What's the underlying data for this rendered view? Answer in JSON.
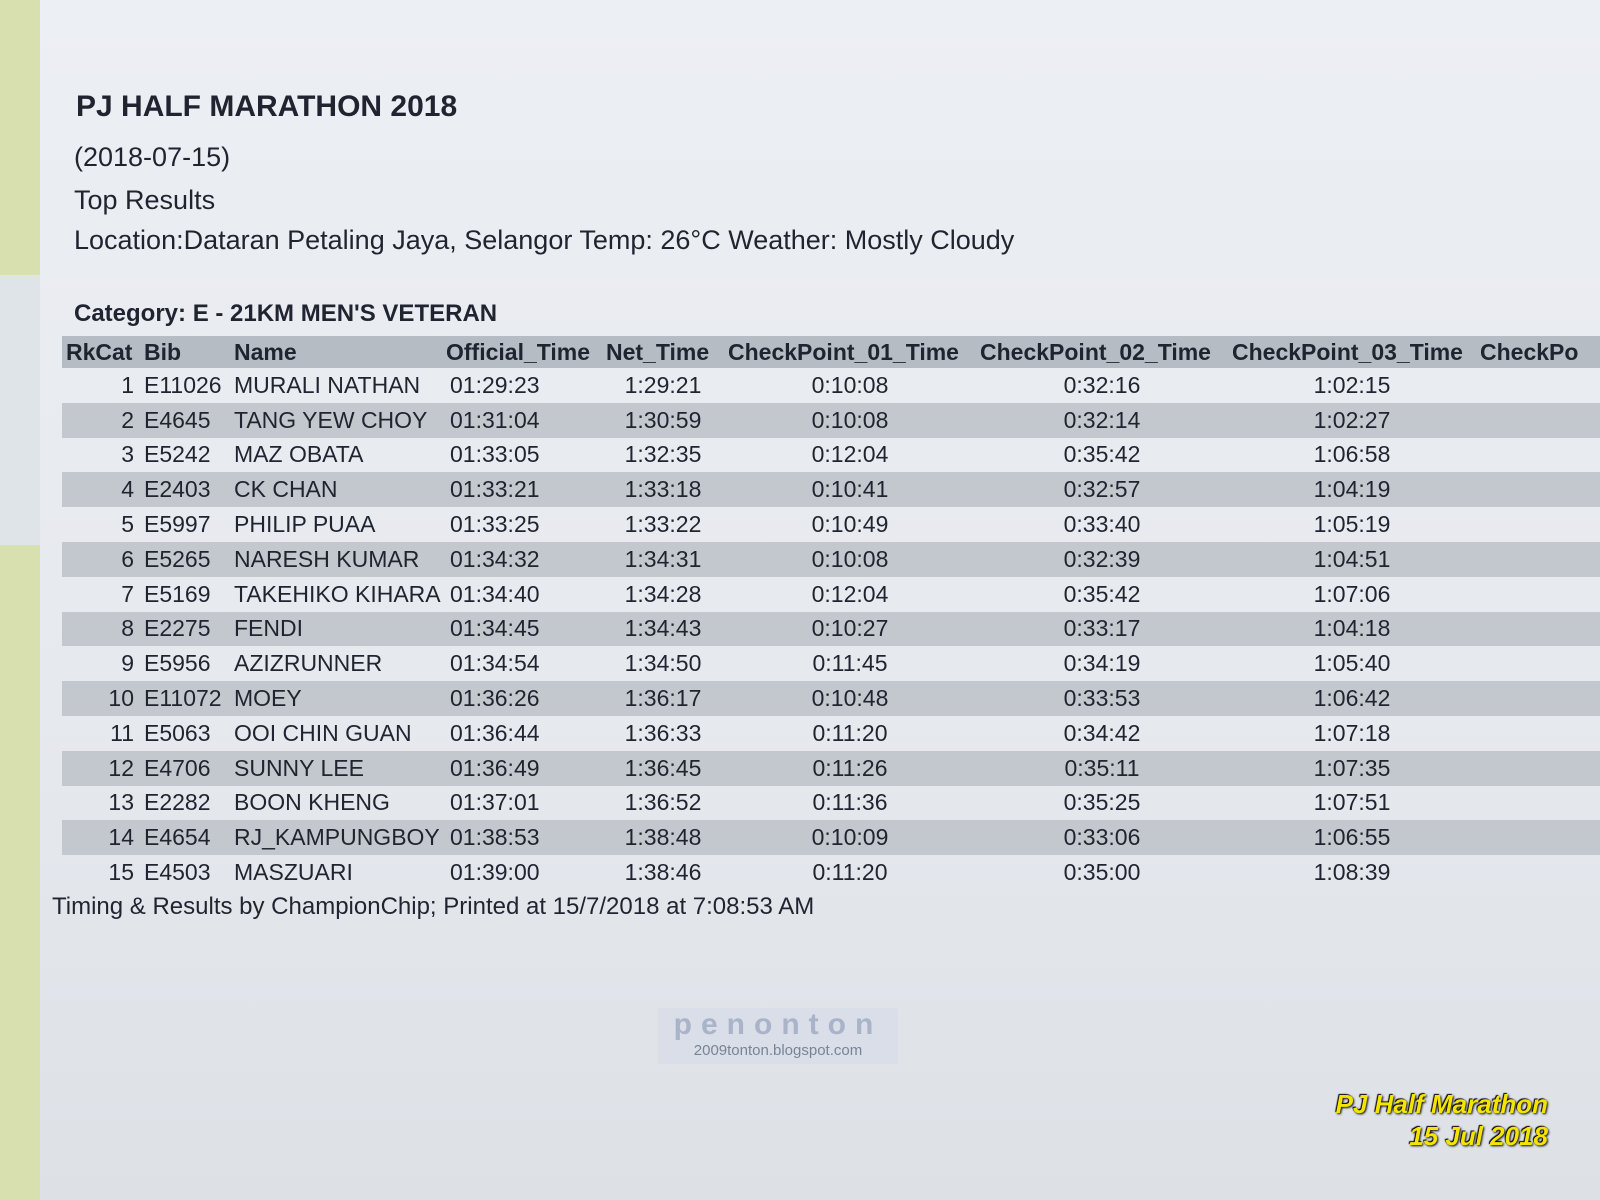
{
  "header": {
    "title": "PJ HALF MARATHON 2018",
    "date": "(2018-07-15)",
    "subtitle": "Top Results",
    "location": "Location:Dataran Petaling Jaya, Selangor Temp: 26°C  Weather: Mostly Cloudy"
  },
  "category": "Category: E - 21KM MEN'S VETERAN",
  "table": {
    "columns": [
      "RkCat",
      "Bib",
      "Name",
      "Official_Time",
      "Net_Time",
      "CheckPoint_01_Time",
      "CheckPoint_02_Time",
      "CheckPoint_03_Time",
      "CheckPo"
    ],
    "rows": [
      [
        "1",
        "E11026",
        "MURALI NATHAN",
        "01:29:23",
        "1:29:21",
        "0:10:08",
        "0:32:16",
        "1:02:15"
      ],
      [
        "2",
        "E4645",
        "TANG YEW CHOY",
        "01:31:04",
        "1:30:59",
        "0:10:08",
        "0:32:14",
        "1:02:27"
      ],
      [
        "3",
        "E5242",
        "MAZ OBATA",
        "01:33:05",
        "1:32:35",
        "0:12:04",
        "0:35:42",
        "1:06:58"
      ],
      [
        "4",
        "E2403",
        "CK CHAN",
        "01:33:21",
        "1:33:18",
        "0:10:41",
        "0:32:57",
        "1:04:19"
      ],
      [
        "5",
        "E5997",
        "PHILIP PUAA",
        "01:33:25",
        "1:33:22",
        "0:10:49",
        "0:33:40",
        "1:05:19"
      ],
      [
        "6",
        "E5265",
        "NARESH KUMAR",
        "01:34:32",
        "1:34:31",
        "0:10:08",
        "0:32:39",
        "1:04:51"
      ],
      [
        "7",
        "E5169",
        "TAKEHIKO KIHARA",
        "01:34:40",
        "1:34:28",
        "0:12:04",
        "0:35:42",
        "1:07:06"
      ],
      [
        "8",
        "E2275",
        "FENDI",
        "01:34:45",
        "1:34:43",
        "0:10:27",
        "0:33:17",
        "1:04:18"
      ],
      [
        "9",
        "E5956",
        "AZIZRUNNER",
        "01:34:54",
        "1:34:50",
        "0:11:45",
        "0:34:19",
        "1:05:40"
      ],
      [
        "10",
        "E11072",
        "MOEY",
        "01:36:26",
        "1:36:17",
        "0:10:48",
        "0:33:53",
        "1:06:42"
      ],
      [
        "11",
        "E5063",
        "OOI CHIN GUAN",
        "01:36:44",
        "1:36:33",
        "0:11:20",
        "0:34:42",
        "1:07:18"
      ],
      [
        "12",
        "E4706",
        "SUNNY LEE",
        "01:36:49",
        "1:36:45",
        "0:11:26",
        "0:35:11",
        "1:07:35"
      ],
      [
        "13",
        "E2282",
        "BOON KHENG",
        "01:37:01",
        "1:36:52",
        "0:11:36",
        "0:35:25",
        "1:07:51"
      ],
      [
        "14",
        "E4654",
        "RJ_KAMPUNGBOY",
        "01:38:53",
        "1:38:48",
        "0:10:09",
        "0:33:06",
        "1:06:55"
      ],
      [
        "15",
        "E4503",
        "MASZUARI",
        "01:39:00",
        "1:38:46",
        "0:11:20",
        "0:35:00",
        "1:08:39"
      ]
    ]
  },
  "footer": "Timing & Results by ChampionChip; Printed at 15/7/2018 at 7:08:53 AM",
  "watermark": {
    "brand": "penonton",
    "url": "2009tonton.blogspot.com"
  },
  "stamp": {
    "line1": "PJ Half Marathon",
    "line2": "15 Jul 2018"
  }
}
